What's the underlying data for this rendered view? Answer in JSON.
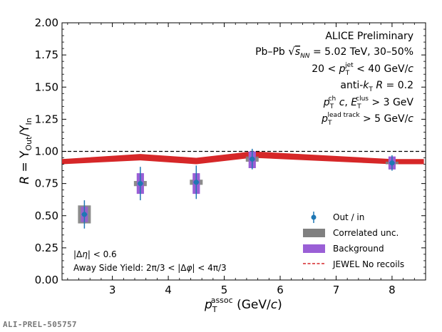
{
  "chart_data": {
    "type": "scatter",
    "xlabel": "p_T^assoc (GeV/c)",
    "ylabel": "R = Y_Out/Y_In",
    "xlim": [
      2.1,
      8.6
    ],
    "ylim": [
      0.0,
      2.0
    ],
    "x_ticks": [
      3,
      4,
      5,
      6,
      7,
      8
    ],
    "x_tick_labels": [
      "3",
      "4",
      "5",
      "6",
      "7",
      "8"
    ],
    "y_ticks": [
      0.0,
      0.25,
      0.5,
      0.75,
      1.0,
      1.25,
      1.5,
      1.75,
      2.0
    ],
    "y_tick_labels": [
      "0.00",
      "0.25",
      "0.50",
      "0.75",
      "1.00",
      "1.25",
      "1.50",
      "1.75",
      "2.00"
    ],
    "reference_line": 1.0,
    "grid": false,
    "legend_position": "bottom-right",
    "series": [
      {
        "name": "Out / in",
        "color": "#1f77b4",
        "x": [
          2.5,
          3.5,
          4.5,
          5.5,
          8.0
        ],
        "y": [
          0.51,
          0.75,
          0.76,
          0.94,
          0.91
        ],
        "stat_err": [
          0.11,
          0.13,
          0.13,
          0.08,
          0.06
        ],
        "x_err": [
          0.05,
          0.05,
          0.05,
          0.05,
          0.05
        ]
      },
      {
        "name": "Correlated unc.",
        "color": "#808080",
        "x": [
          2.5,
          3.5,
          4.5,
          5.5,
          8.0
        ],
        "low": [
          0.44,
          0.73,
          0.74,
          0.92,
          0.9
        ],
        "high": [
          0.58,
          0.77,
          0.78,
          0.96,
          0.92
        ]
      },
      {
        "name": "Background",
        "color": "#9a5fd6",
        "x": [
          2.5,
          3.5,
          4.5,
          5.5,
          8.0
        ],
        "low": [
          0.45,
          0.67,
          0.67,
          0.87,
          0.86
        ],
        "high": [
          0.57,
          0.83,
          0.83,
          1.0,
          0.96
        ]
      },
      {
        "name": "JEWEL No recoils",
        "color": "#d62728",
        "x": [
          2.1,
          3.5,
          4.5,
          5.5,
          8.0
        ],
        "low": [
          0.9,
          0.93,
          0.9,
          0.95,
          0.9
        ],
        "high": [
          0.94,
          0.98,
          0.95,
          1.0,
          0.94
        ]
      }
    ],
    "annotations": [
      "ALICE Preliminary",
      "Pb–Pb √s_NN = 5.02 TeV, 30–50%",
      "20 < p_T^jet < 40 GeV/c",
      "anti-k_T R = 0.2",
      "p_T^ch c, E_T^clus > 3 GeV",
      "p_T^lead track > 5 GeV/c"
    ],
    "selection_notes": [
      "|Δη| < 0.6",
      "Away Side Yield: 2π/3 < |Δφ| < 4π/3"
    ]
  },
  "watermark": "ALI-PREL-505757",
  "colors": {
    "points": "#1f77b4",
    "correlated": "#808080",
    "background": "#9a5fd6",
    "jewel": "#d62728",
    "reference": "#000000"
  }
}
